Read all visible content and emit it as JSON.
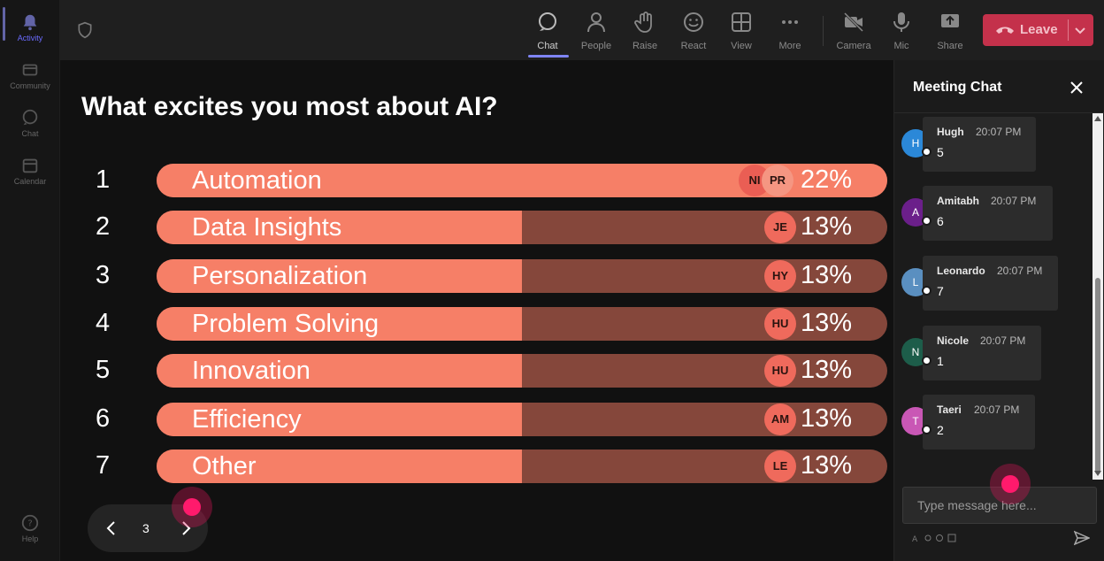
{
  "rail": {
    "items": [
      {
        "label": "Activity"
      },
      {
        "label": "Community"
      },
      {
        "label": "Chat"
      },
      {
        "label": "Calendar"
      },
      {
        "label": "Help"
      }
    ]
  },
  "toolbar": {
    "buttons": [
      {
        "label": "Chat",
        "icon": "chat-icon"
      },
      {
        "label": "People",
        "icon": "people-icon"
      },
      {
        "label": "Raise",
        "icon": "raise-hand-icon"
      },
      {
        "label": "React",
        "icon": "react-icon"
      },
      {
        "label": "View",
        "icon": "view-icon"
      },
      {
        "label": "More",
        "icon": "more-icon"
      },
      {
        "label": "Camera",
        "icon": "camera-off-icon"
      },
      {
        "label": "Mic",
        "icon": "mic-icon"
      },
      {
        "label": "Share",
        "icon": "share-icon"
      }
    ],
    "leave_label": "Leave",
    "leave_color": "#c4314b"
  },
  "poll": {
    "question": "What excites you most about AI?",
    "options": [
      {
        "num": "1",
        "label": "Automation",
        "percent": "22%",
        "fill": 1.0,
        "avatars": [
          "NI",
          "PR"
        ]
      },
      {
        "num": "2",
        "label": "Data Insights",
        "percent": "13%",
        "fill": 0.5,
        "avatars": [
          "JE"
        ]
      },
      {
        "num": "3",
        "label": "Personalization",
        "percent": "13%",
        "fill": 0.5,
        "avatars": [
          "HY"
        ]
      },
      {
        "num": "4",
        "label": "Problem Solving",
        "percent": "13%",
        "fill": 0.5,
        "avatars": [
          "HU"
        ]
      },
      {
        "num": "5",
        "label": "Innovation",
        "percent": "13%",
        "fill": 0.5,
        "avatars": [
          "HU"
        ]
      },
      {
        "num": "6",
        "label": "Efficiency",
        "percent": "13%",
        "fill": 0.5,
        "avatars": [
          "AM"
        ]
      },
      {
        "num": "7",
        "label": "Other",
        "percent": "13%",
        "fill": 0.5,
        "avatars": [
          "LE"
        ]
      }
    ],
    "bar_color": "#f67f67",
    "track_color": "#85473b",
    "page": "3"
  },
  "chat": {
    "title": "Meeting Chat",
    "messages": [
      {
        "initial": "H",
        "name": "Hugh",
        "time": "20:07 PM",
        "text": "5",
        "color": "#2b88d8"
      },
      {
        "initial": "A",
        "name": "Amitabh",
        "time": "20:07 PM",
        "text": "6",
        "color": "#6b1f8a"
      },
      {
        "initial": "L",
        "name": "Leonardo",
        "time": "20:07 PM",
        "text": "7",
        "color": "#5a8fc0"
      },
      {
        "initial": "N",
        "name": "Nicole",
        "time": "20:07 PM",
        "text": "1",
        "color": "#1d5d4a"
      },
      {
        "initial": "T",
        "name": "Taeri",
        "time": "20:07 PM",
        "text": "2",
        "color": "#c957b5"
      }
    ],
    "input_placeholder": "Type message here..."
  }
}
